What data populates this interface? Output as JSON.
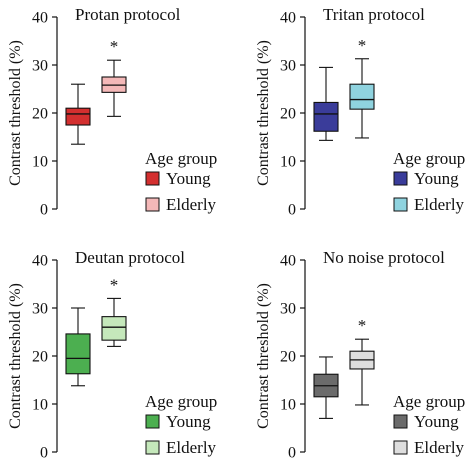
{
  "chart_data": [
    {
      "type": "box",
      "title": "Protan protocol",
      "ylabel": "Contrast threshold (%)",
      "ylim": [
        0,
        40
      ],
      "yticks": [
        "0",
        "10",
        "20",
        "30",
        "40"
      ],
      "legend": {
        "title": "Age group",
        "placement": "bottom-right"
      },
      "significance": "*",
      "series": [
        {
          "name": "Young",
          "color": "#d32f2f",
          "min": 13.5,
          "q1": 17.5,
          "median": 19.8,
          "q3": 21,
          "max": 26
        },
        {
          "name": "Elderly",
          "color": "#f4b8b8",
          "min": 19.3,
          "q1": 24.3,
          "median": 25.8,
          "q3": 27.5,
          "max": 31
        }
      ]
    },
    {
      "type": "box",
      "title": "Tritan protocol",
      "ylabel": "Contrast threshold (%)",
      "ylim": [
        0,
        40
      ],
      "yticks": [
        "0",
        "10",
        "20",
        "30",
        "40"
      ],
      "legend": {
        "title": "Age group",
        "placement": "bottom-right"
      },
      "significance": "*",
      "series": [
        {
          "name": "Young",
          "color": "#3a3c9a",
          "min": 14.3,
          "q1": 16.2,
          "median": 19.8,
          "q3": 22.2,
          "max": 29.5
        },
        {
          "name": "Elderly",
          "color": "#8fd3df",
          "min": 14.8,
          "q1": 20.8,
          "median": 22.8,
          "q3": 26,
          "max": 31.3
        }
      ]
    },
    {
      "type": "box",
      "title": "Deutan protocol",
      "ylabel": "Contrast threshold (%)",
      "ylim": [
        0,
        40
      ],
      "yticks": [
        "0",
        "10",
        "20",
        "30",
        "40"
      ],
      "legend": {
        "title": "Age group",
        "placement": "bottom-right"
      },
      "significance": "*",
      "series": [
        {
          "name": "Young",
          "color": "#4caf50",
          "min": 13.8,
          "q1": 16.3,
          "median": 19.5,
          "q3": 24.6,
          "max": 30
        },
        {
          "name": "Elderly",
          "color": "#c5e8bb",
          "min": 22,
          "q1": 23.3,
          "median": 26,
          "q3": 28.2,
          "max": 32
        }
      ]
    },
    {
      "type": "box",
      "title": "No noise protocol",
      "ylabel": "Contrast threshold (%)",
      "ylim": [
        0,
        40
      ],
      "yticks": [
        "0",
        "10",
        "20",
        "30",
        "40"
      ],
      "legend": {
        "title": "Age group",
        "placement": "bottom-right"
      },
      "significance": "*",
      "series": [
        {
          "name": "Young",
          "color": "#6b6b6b",
          "min": 7,
          "q1": 11.5,
          "median": 13.8,
          "q3": 16.2,
          "max": 19.8
        },
        {
          "name": "Elderly",
          "color": "#dedede",
          "min": 9.8,
          "q1": 17.3,
          "median": 19.2,
          "q3": 21,
          "max": 23.5
        }
      ]
    }
  ]
}
